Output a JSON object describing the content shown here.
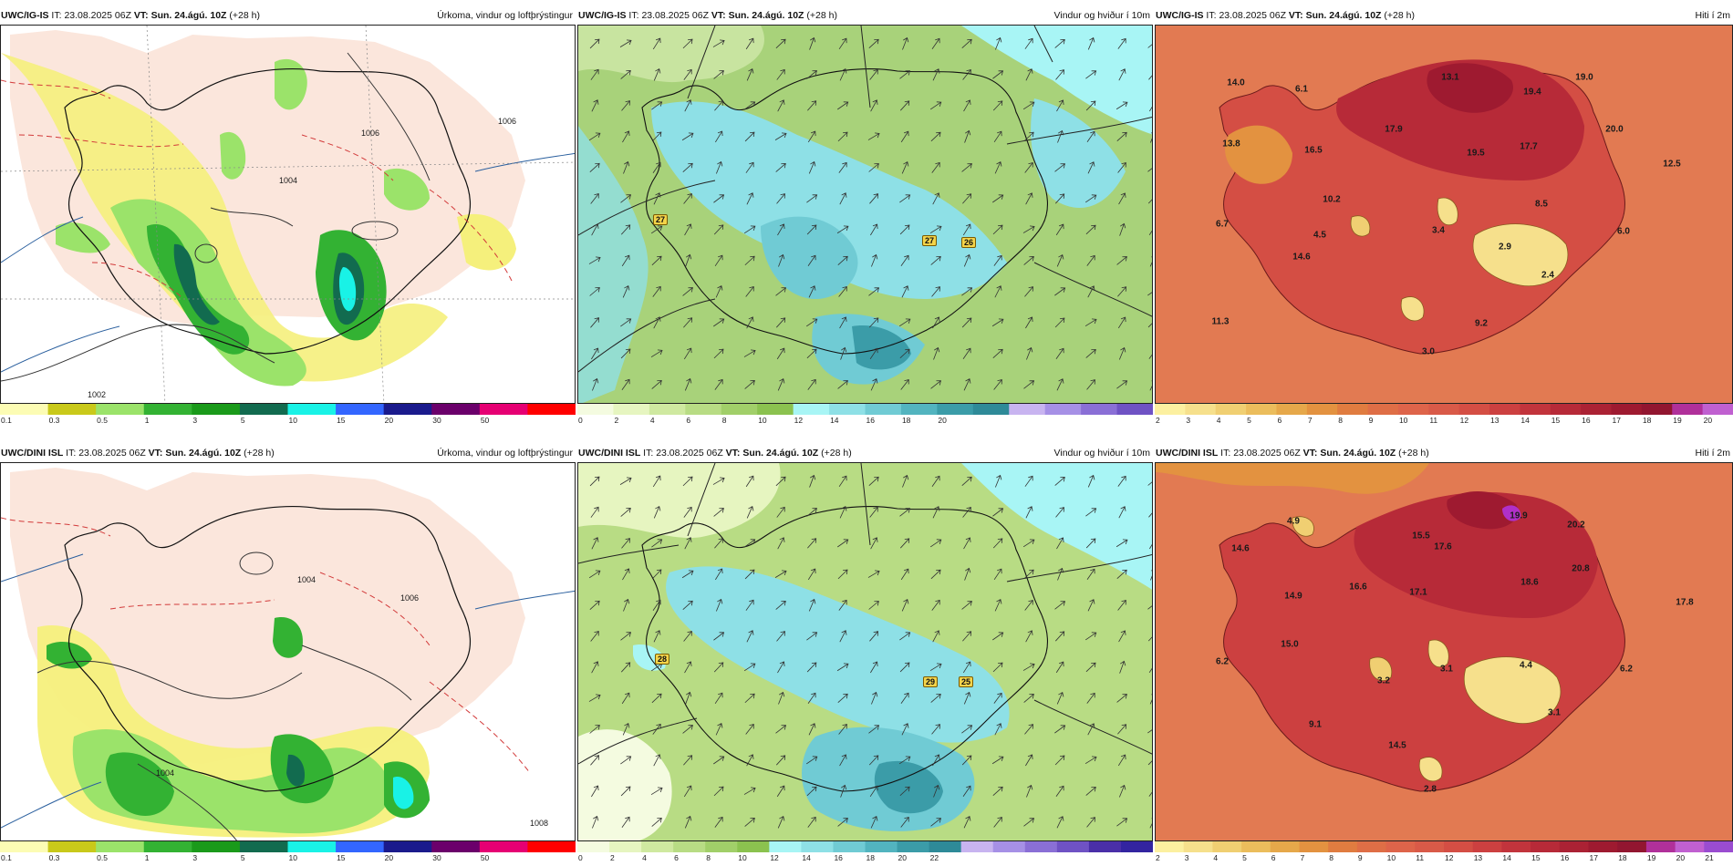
{
  "rows": [
    {
      "model": "UWC/IG-IS",
      "it_label": "IT:",
      "it_value": "23.08.2025 06Z",
      "vt_label": "VT:",
      "vt_value": "Sun. 24.ágú. 10Z",
      "lead": "(+28 h)"
    },
    {
      "model": "UWC/DINI ISL",
      "it_label": "IT:",
      "it_value": "23.08.2025 06Z",
      "vt_label": "VT:",
      "vt_value": "Sun. 24.ágú. 10Z",
      "lead": "(+28 h)"
    }
  ],
  "panel_titles": {
    "precip": "Úrkoma, vindur og loftþrýstingur",
    "wind": "Vindur og hviður í 10m",
    "temp": "Hiti í 2m"
  },
  "colorbars": {
    "precip": {
      "ticks": [
        "0.1",
        "0.3",
        "0.5",
        "1",
        "3",
        "5",
        "10",
        "15",
        "20",
        "30",
        "50"
      ],
      "colors": [
        "#fcfcb4",
        "#c9c91a",
        "#9be36a",
        "#33b233",
        "#1a9a1a",
        "#126b4f",
        "#19f2e6",
        "#3366ff",
        "#1a1a8c",
        "#6b006b",
        "#e60073",
        "#ff0000"
      ]
    },
    "wind_top": {
      "ticks": [
        "0",
        "2",
        "4",
        "6",
        "8",
        "10",
        "12",
        "14",
        "16",
        "18",
        "20"
      ],
      "colors": [
        "#f4fbe0",
        "#e6f5c0",
        "#cfe9a0",
        "#b8dc84",
        "#a1cf69",
        "#8bc24f",
        "#a8f5f5",
        "#8ee0e6",
        "#70cbd4",
        "#52b4bf",
        "#3b9ca8",
        "#2e8a98",
        "#c8b4f0",
        "#a690e6",
        "#8a6fd6",
        "#6f52c4"
      ]
    },
    "wind_bottom": {
      "ticks": [
        "0",
        "2",
        "4",
        "6",
        "8",
        "10",
        "12",
        "14",
        "16",
        "18",
        "20",
        "22"
      ],
      "colors": [
        "#f4fbe0",
        "#e6f5c0",
        "#cfe9a0",
        "#b8dc84",
        "#a1cf69",
        "#8bc24f",
        "#a8f5f5",
        "#8ee0e6",
        "#70cbd4",
        "#52b4bf",
        "#3b9ca8",
        "#2e8a98",
        "#c8b4f0",
        "#a690e6",
        "#8a6fd6",
        "#6f52c4",
        "#4a2fa8",
        "#3324a0"
      ]
    },
    "temp_top": {
      "ticks": [
        "2",
        "3",
        "4",
        "5",
        "6",
        "7",
        "8",
        "9",
        "10",
        "11",
        "12",
        "13",
        "14",
        "15",
        "16",
        "17",
        "18",
        "19",
        "20"
      ],
      "colors": [
        "#fcf0a0",
        "#f6e08c",
        "#f0cf72",
        "#ebbd5c",
        "#e6a84a",
        "#e39240",
        "#e07c40",
        "#df6e46",
        "#de644a",
        "#d95a48",
        "#d44e44",
        "#cc4040",
        "#c2343c",
        "#b72a38",
        "#ab2234",
        "#9e1a30",
        "#921630",
        "#b0309a",
        "#c060d0"
      ]
    },
    "temp_bottom": {
      "ticks": [
        "2",
        "3",
        "4",
        "5",
        "6",
        "7",
        "8",
        "9",
        "10",
        "11",
        "12",
        "13",
        "14",
        "15",
        "16",
        "17",
        "18",
        "19",
        "20",
        "21"
      ],
      "colors": [
        "#fcf0a0",
        "#f6e08c",
        "#f0cf72",
        "#ebbd5c",
        "#e6a84a",
        "#e39240",
        "#e07c40",
        "#df6e46",
        "#de644a",
        "#d95a48",
        "#d44e44",
        "#cc4040",
        "#c2343c",
        "#b72a38",
        "#ab2234",
        "#9e1a30",
        "#921630",
        "#b0309a",
        "#c060d0",
        "#9a4cd0"
      ]
    }
  },
  "temp_labels_top": [
    "14.0",
    "6.1",
    "13.1",
    "19.4",
    "19.0",
    "13.8",
    "16.5",
    "17.9",
    "19.5",
    "17.7",
    "20.0",
    "12.5",
    "10.2",
    "8.5",
    "6.7",
    "4.5",
    "3.4",
    "2.9",
    "6.0",
    "14.6",
    "2.4",
    "11.3",
    "9.2",
    "3.0"
  ],
  "temp_labels_bottom": [
    "4.9",
    "19.9",
    "20.2",
    "14.6",
    "15.5",
    "17.6",
    "20.8",
    "16.6",
    "17.1",
    "18.6",
    "17.8",
    "14.9",
    "15.0",
    "6.2",
    "3.2",
    "3.1",
    "4.4",
    "6.2",
    "3.1",
    "9.1",
    "14.5",
    "2.8"
  ],
  "gust_labels_top": [
    "27",
    "27",
    "26"
  ],
  "gust_labels_bottom": [
    "28",
    "29",
    "25"
  ],
  "isobar_labels_top": [
    "1004",
    "1006",
    "1006",
    "1002"
  ],
  "isobar_labels_bottom": [
    "1004",
    "1006",
    "1004",
    "1008"
  ]
}
